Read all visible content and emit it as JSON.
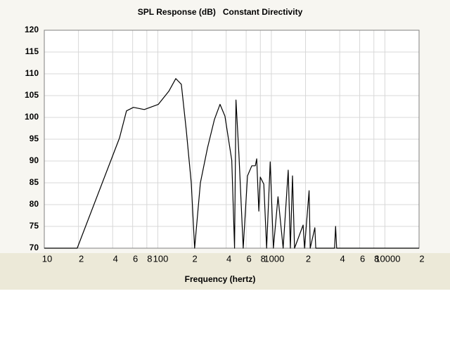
{
  "chart_data": {
    "type": "line",
    "title": "SPL Response (dB)   Constant Directivity",
    "x_label": "Frequency (hertz)",
    "x": [
      10,
      19.5,
      46,
      53,
      61,
      76,
      101,
      125,
      144,
      161,
      178,
      197,
      211,
      237,
      274,
      315,
      353,
      390,
      448,
      474,
      488,
      518,
      565,
      616,
      672,
      722,
      743,
      776,
      799,
      858,
      908,
      977,
      1042,
      1145,
      1271,
      1408,
      1471,
      1535,
      1601,
      1905,
      1960,
      2149,
      2200,
      2418,
      2460,
      3600,
      3680,
      3760,
      20000
    ],
    "values": [
      70,
      70,
      95.3,
      101.5,
      102.3,
      101.8,
      103,
      106,
      108.9,
      107.6,
      97.1,
      85,
      70,
      85,
      93,
      99.5,
      103,
      100.3,
      90.2,
      70,
      104,
      91.5,
      70,
      86.6,
      88.9,
      88.9,
      90.5,
      78.5,
      86.3,
      84.7,
      70,
      89.8,
      70,
      81.8,
      70,
      87.9,
      70,
      86.6,
      70,
      75.3,
      70,
      83.2,
      70,
      74.7,
      70,
      70,
      75,
      70,
      70
    ],
    "color": "#000000",
    "log_x": true,
    "grid": true,
    "xlim": [
      10,
      20000
    ],
    "xticks": [
      10,
      {
        "value": 20,
        "label": "2"
      },
      {
        "value": 40,
        "label": "4"
      },
      {
        "value": 60,
        "label": "6"
      },
      {
        "value": 80,
        "label": "8"
      },
      100,
      {
        "value": 200,
        "label": "2"
      },
      {
        "value": 400,
        "label": "4"
      },
      {
        "value": 600,
        "label": "6"
      },
      {
        "value": 800,
        "label": "8"
      },
      1000,
      {
        "value": 2000,
        "label": "2"
      },
      {
        "value": 4000,
        "label": "4"
      },
      {
        "value": 6000,
        "label": "6"
      },
      {
        "value": 8000,
        "label": "8"
      },
      10000,
      {
        "value": 20000,
        "label": "2"
      }
    ],
    "ylim": [
      70,
      120
    ],
    "yticks": [
      70,
      75,
      80,
      85,
      90,
      95,
      100,
      105,
      110,
      115,
      120
    ]
  }
}
